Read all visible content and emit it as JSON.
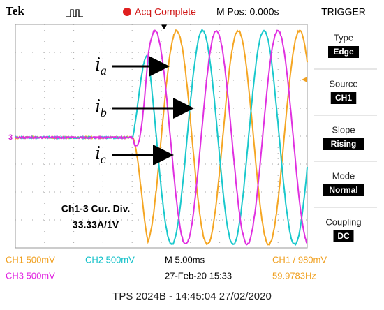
{
  "header": {
    "brand": "Tek",
    "status": "Acq Complete",
    "position": "M Pos: 0.000s",
    "menu_title": "TRIGGER"
  },
  "menu": [
    {
      "label": "Type",
      "value": "Edge"
    },
    {
      "label": "Source",
      "value": "CH1"
    },
    {
      "label": "Slope",
      "value": "Rising"
    },
    {
      "label": "Mode",
      "value": "Normal"
    },
    {
      "label": "Coupling",
      "value": "DC"
    }
  ],
  "annotations": {
    "labels": [
      {
        "symbol": "i",
        "subscript": "a"
      },
      {
        "symbol": "i",
        "subscript": "b"
      },
      {
        "symbol": "i",
        "subscript": "c"
      }
    ],
    "note": [
      "Ch1-3 Cur. Div.",
      "33.33A/1V"
    ]
  },
  "marker": "3",
  "status_bar": {
    "ch1": "CH1  500mV",
    "ch2": "CH2  500mV",
    "timebase": "M 5.00ms",
    "trigger": "CH1  /  980mV",
    "ch3": "CH3  500mV",
    "date": "27-Feb-20 15:33",
    "frequency": "59.9783Hz"
  },
  "footer": "TPS 2024B - 14:45:04   27/02/2020"
}
